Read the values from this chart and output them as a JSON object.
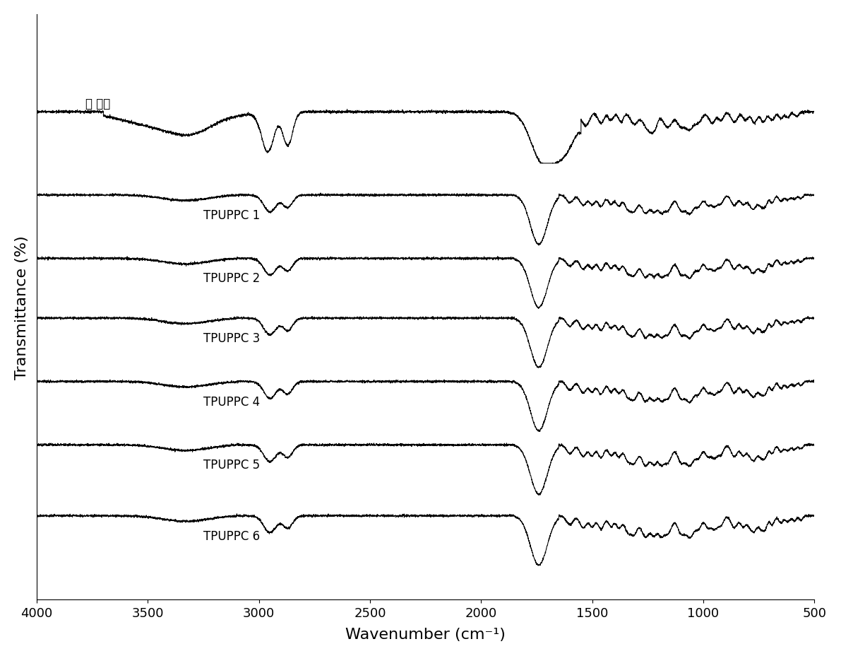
{
  "title": "",
  "xlabel": "Wavenumber (cm⁻¹)",
  "ylabel": "Transmittance (%)",
  "xlim": [
    4000,
    500
  ],
  "background_color": "#ffffff",
  "series_labels": [
    "预 聚物",
    "TPUPPC 1",
    "TPUPPC 2",
    "TPUPPC 3",
    "TPUPPC 4",
    "TPUPPC 5",
    "TPUPPC 6"
  ],
  "xticks": [
    4000,
    3500,
    3000,
    2500,
    2000,
    1500,
    1000,
    500
  ],
  "offsets": [
    5.8,
    4.7,
    3.85,
    3.05,
    2.2,
    1.35,
    0.4
  ],
  "amplitude": 0.75
}
